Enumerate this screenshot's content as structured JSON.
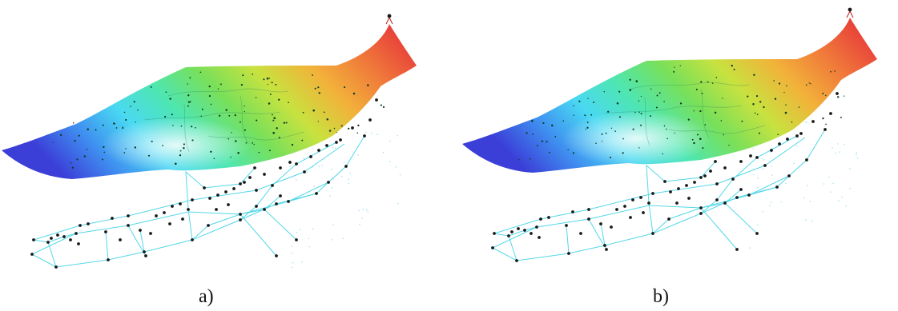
{
  "figure": {
    "panels": [
      {
        "id": "a",
        "caption": "a)"
      },
      {
        "id": "b",
        "caption": "b)"
      }
    ],
    "colors": {
      "surface_gradient": [
        "#3b3fd8",
        "#3f8ff0",
        "#49d9f2",
        "#4fe6b0",
        "#78e05a",
        "#c8e23f",
        "#f2b23a",
        "#f07a3a",
        "#e8423a"
      ],
      "network_lines": "#54d8e8",
      "nodes": "#1a1a1a",
      "background": "#ffffff"
    }
  }
}
